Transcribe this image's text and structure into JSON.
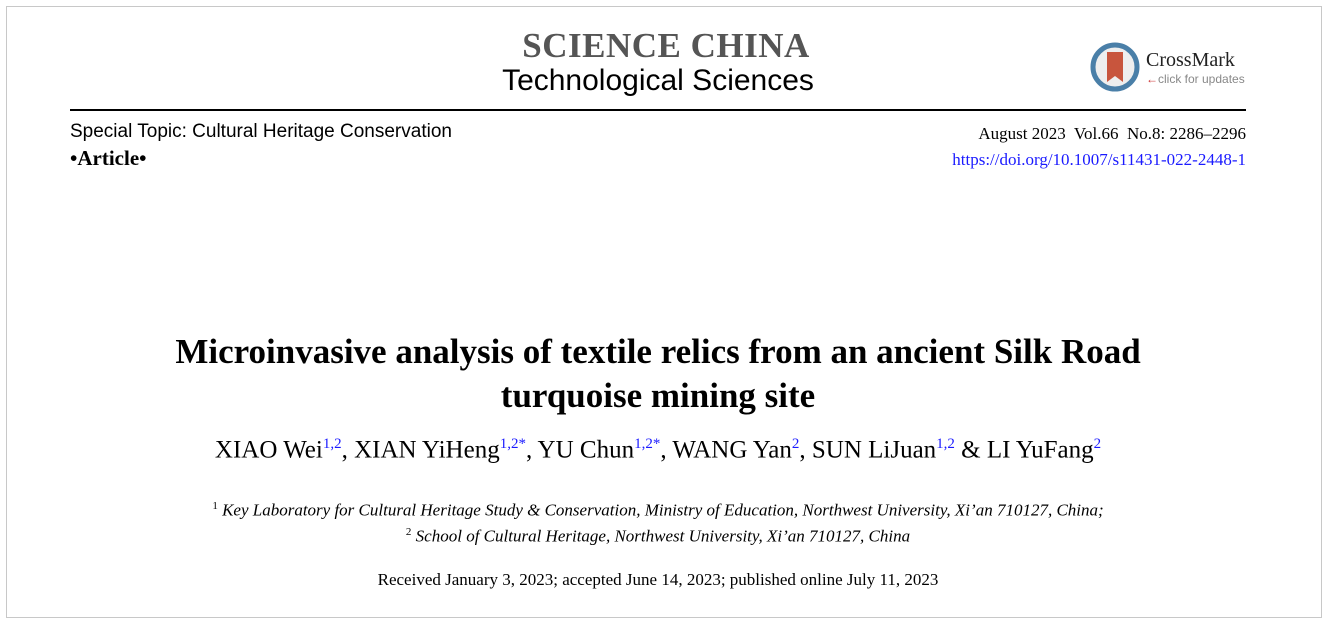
{
  "journal": {
    "name": "SCIENCE CHINA",
    "subtitle": "Technological Sciences"
  },
  "crossmark": {
    "title": "CrossMark",
    "sub": "click for updates"
  },
  "topic": "Special Topic: Cultural Heritage Conservation",
  "article_type": "•Article•",
  "issue": "August 2023  Vol.66  No.8: 2286–2296",
  "doi": "https://doi.org/10.1007/s11431-022-2448-1",
  "title_lines": [
    "Microinvasive analysis of textile relics from an ancient Silk Road",
    "turquoise mining site"
  ],
  "authors": [
    {
      "name": "XIAO Wei",
      "sup": "1,2",
      "sep": ", "
    },
    {
      "name": "XIAN YiHeng",
      "sup": "1,2*",
      "sep": ", "
    },
    {
      "name": "YU Chun",
      "sup": "1,2*",
      "sep": ", "
    },
    {
      "name": "WANG Yan",
      "sup": "2",
      "sep": ", "
    },
    {
      "name": "SUN LiJuan",
      "sup": "1,2",
      "sep": " & "
    },
    {
      "name": "LI YuFang",
      "sup": "2",
      "sep": ""
    }
  ],
  "affiliations": [
    {
      "num": "1",
      "text": "Key Laboratory for Cultural Heritage Study & Conservation, Ministry of Education, Northwest University, Xi’an 710127, China;"
    },
    {
      "num": "2",
      "text": "School of Cultural Heritage, Northwest University, Xi’an 710127, China"
    }
  ],
  "received": "Received January 3, 2023; accepted June 14, 2023; published online July 11, 2023"
}
